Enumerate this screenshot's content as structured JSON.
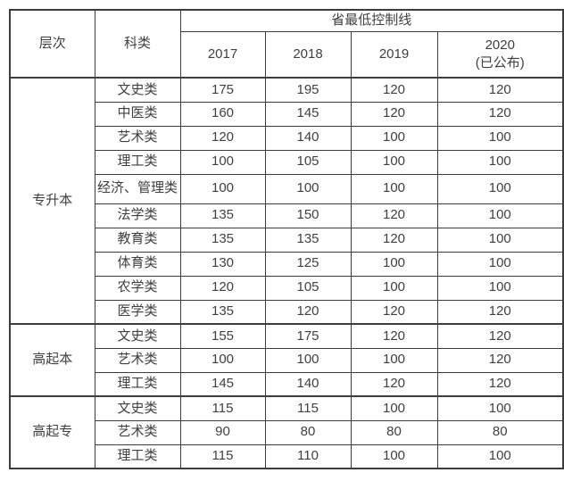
{
  "colors": {
    "background": "#ffffff",
    "border": "#3d3d3d",
    "text": "#404040"
  },
  "chart_data": {
    "type": "table",
    "title": "省最低控制线",
    "header": {
      "col_level": "层次",
      "col_category": "科类",
      "group_title": "省最低控制线",
      "year_2017": "2017",
      "year_2018": "2018",
      "year_2019": "2019",
      "year_2020": "2020",
      "year_2020_note": "(已公布)"
    },
    "columns": [
      "层次",
      "科类",
      "2017",
      "2018",
      "2019",
      "2020 (已公布)"
    ],
    "groups": [
      {
        "level": "专升本",
        "rows": [
          [
            "文史类",
            175,
            195,
            120,
            120
          ],
          [
            "中医类",
            160,
            145,
            120,
            120
          ],
          [
            "艺术类",
            120,
            140,
            100,
            100
          ],
          [
            "理工类",
            100,
            105,
            100,
            100
          ],
          [
            "经济、管理类",
            100,
            100,
            100,
            100
          ],
          [
            "法学类",
            135,
            150,
            120,
            100
          ],
          [
            "教育类",
            135,
            135,
            120,
            100
          ],
          [
            "体育类",
            130,
            125,
            100,
            100
          ],
          [
            "农学类",
            120,
            105,
            100,
            100
          ],
          [
            "医学类",
            135,
            120,
            120,
            120
          ]
        ]
      },
      {
        "level": "高起本",
        "rows": [
          [
            "文史类",
            155,
            175,
            120,
            120
          ],
          [
            "艺术类",
            100,
            100,
            100,
            120
          ],
          [
            "理工类",
            145,
            140,
            120,
            120
          ]
        ]
      },
      {
        "level": "高起专",
        "rows": [
          [
            "文史类",
            115,
            115,
            100,
            100
          ],
          [
            "艺术类",
            90,
            80,
            80,
            80
          ],
          [
            "理工类",
            115,
            110,
            100,
            100
          ]
        ]
      }
    ]
  }
}
